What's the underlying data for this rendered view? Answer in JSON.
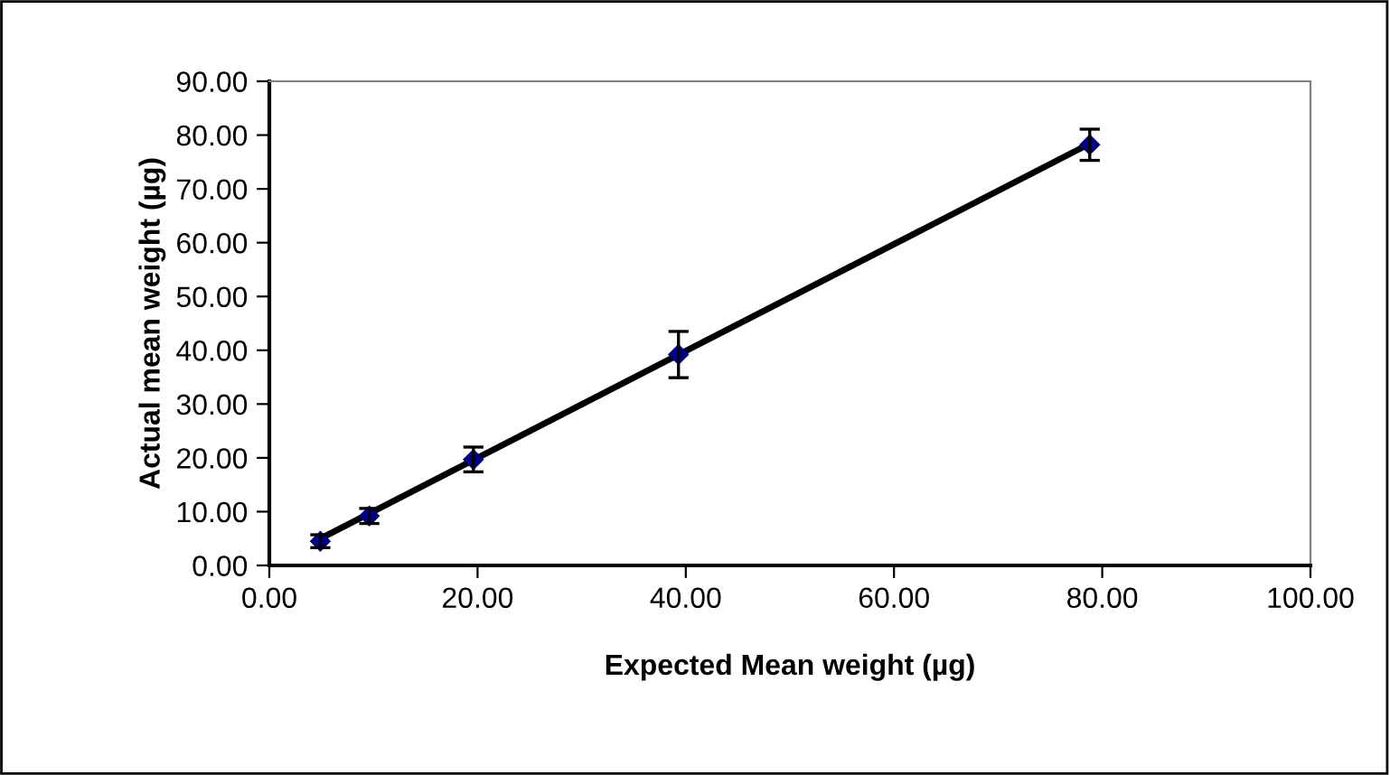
{
  "chart_data": {
    "type": "scatter",
    "xlabel": "Expected Mean weight (µg)",
    "ylabel": "Actual mean weight (µg)",
    "xlim": [
      0,
      100
    ],
    "xticks": [
      {
        "value": 0,
        "label": "0.00"
      },
      {
        "value": 20,
        "label": "20.00"
      },
      {
        "value": 40,
        "label": "40.00"
      },
      {
        "value": 60,
        "label": "60.00"
      },
      {
        "value": 80,
        "label": "80.00"
      },
      {
        "value": 100,
        "label": "100.00"
      }
    ],
    "ylim": [
      0,
      90
    ],
    "yticks": [
      {
        "value": 0,
        "label": "0.00"
      },
      {
        "value": 10,
        "label": "10.00"
      },
      {
        "value": 20,
        "label": "20.00"
      },
      {
        "value": 30,
        "label": "30.00"
      },
      {
        "value": 40,
        "label": "40.00"
      },
      {
        "value": 50,
        "label": "50.00"
      },
      {
        "value": 60,
        "label": "60.00"
      },
      {
        "value": 70,
        "label": "70.00"
      },
      {
        "value": 80,
        "label": "80.00"
      },
      {
        "value": 90,
        "label": "90.00"
      }
    ],
    "grid": false,
    "legend": false,
    "series": [
      {
        "color": "#000080",
        "marker": "diamond",
        "x": [
          4.9,
          9.6,
          19.6,
          39.3,
          78.8
        ],
        "values": [
          4.5,
          9.2,
          19.7,
          39.2,
          78.2
        ],
        "errors": [
          1.2,
          1.4,
          2.3,
          4.3,
          2.9
        ]
      },
      {
        "type": "line",
        "color": "#000000",
        "line_style": "solid",
        "marker": "none",
        "x": [
          4.9,
          78.8
        ],
        "values": [
          5.0,
          78.4
        ]
      }
    ]
  }
}
